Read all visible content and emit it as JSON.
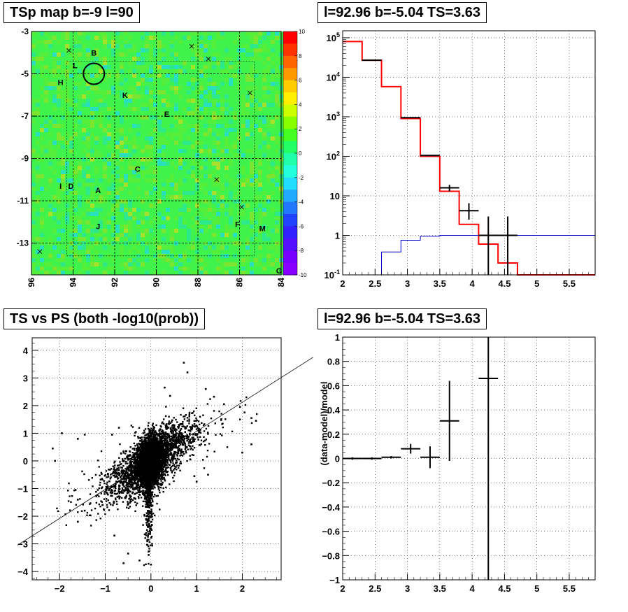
{
  "chart_data": [
    {
      "type": "heatmap",
      "title": "TSp map b=-9 l=90",
      "xlim": [
        96,
        84
      ],
      "ylim": [
        -14.5,
        -3
      ],
      "xticks": [
        96,
        94,
        92,
        90,
        88,
        86,
        84
      ],
      "yticks": [
        -3,
        -5,
        -7,
        -9,
        -11,
        -13
      ],
      "colorbar": {
        "min": -10,
        "max": 10,
        "ticks": [
          10,
          8,
          6,
          4,
          2,
          0,
          -2,
          -4,
          -6,
          -8,
          -10
        ]
      },
      "markers_x": [
        [
          94.2,
          -3.9
        ],
        [
          88.3,
          -3.7
        ],
        [
          87.5,
          -4.3
        ],
        [
          85.5,
          -5.9
        ],
        [
          87.1,
          -10.0
        ],
        [
          85.9,
          -11.3
        ],
        [
          95.6,
          -13.4
        ]
      ],
      "labels": [
        {
          "text": "B",
          "x": 93.0,
          "y": -4.0
        },
        {
          "text": "L",
          "x": 93.9,
          "y": -4.6
        },
        {
          "text": "H",
          "x": 94.6,
          "y": -5.4
        },
        {
          "text": "K",
          "x": 91.5,
          "y": -6.0
        },
        {
          "text": "E",
          "x": 89.5,
          "y": -6.9
        },
        {
          "text": "C",
          "x": 90.9,
          "y": -9.5
        },
        {
          "text": "I",
          "x": 94.6,
          "y": -10.3
        },
        {
          "text": "D",
          "x": 94.1,
          "y": -10.3
        },
        {
          "text": "A",
          "x": 92.8,
          "y": -10.5
        },
        {
          "text": "J",
          "x": 92.8,
          "y": -12.2
        },
        {
          "text": "F",
          "x": 86.1,
          "y": -12.1
        },
        {
          "text": "M",
          "x": 84.9,
          "y": -12.3
        },
        {
          "text": "G",
          "x": 84.1,
          "y": -14.3
        }
      ],
      "circle": {
        "x": 93.0,
        "y": -5.0
      }
    },
    {
      "type": "line",
      "title": "l=92.96 b=-5.04 TS=3.63",
      "xlim": [
        2,
        5.9
      ],
      "ylim": [
        0.1,
        150000
      ],
      "yscale": "log",
      "xticks": [
        2,
        2.5,
        3,
        3.5,
        4,
        4.5,
        5,
        5.5
      ],
      "yticks": [
        {
          "value": 0.1,
          "label": "10^-1"
        },
        {
          "value": 1,
          "label": "1"
        },
        {
          "value": 10,
          "label": "10"
        },
        {
          "value": 100,
          "label": "10^2"
        },
        {
          "value": 1000,
          "label": "10^3"
        },
        {
          "value": 10000,
          "label": "10^4"
        },
        {
          "value": 100000,
          "label": "10^5"
        }
      ],
      "bin_edges": [
        2,
        2.3,
        2.6,
        2.9,
        3.2,
        3.5,
        3.8,
        4.1,
        4.4,
        4.7,
        5.0,
        5.3,
        5.6,
        5.9
      ],
      "series": [
        {
          "color": "#ff0000",
          "values": [
            80000,
            27000,
            5800,
            900,
            100,
            13,
            1.9,
            0.6,
            0.2,
            0.1,
            0.1,
            0.1,
            0.1
          ]
        },
        {
          "color": "#0000cc",
          "values": [
            0.05,
            0.05,
            0.38,
            0.75,
            0.95,
            1.0,
            1.0,
            1.0,
            1.0,
            1.0,
            1.0,
            1.0,
            1.0
          ]
        }
      ],
      "data_points": [
        {
          "x": 2.45,
          "y": 27000
        },
        {
          "x": 3.05,
          "y": 950
        },
        {
          "x": 3.35,
          "y": 105
        },
        {
          "x": 3.65,
          "y": 16,
          "ylo": 13,
          "yhi": 19
        },
        {
          "x": 3.95,
          "y": 4.2,
          "ylo": 2.5,
          "yhi": 6.5
        },
        {
          "x": 4.25,
          "y": 1.0,
          "ylo": 0.1,
          "yhi": 3.0
        },
        {
          "x": 4.55,
          "y": 1.0,
          "ylo": 0.1,
          "yhi": 3.0
        }
      ]
    },
    {
      "type": "scatter",
      "title": "TS vs PS (both -log10(prob))",
      "xlim": [
        -2.6,
        2.85
      ],
      "ylim": [
        -4.3,
        4.45
      ],
      "xticks": [
        -2,
        -1,
        0,
        1,
        2
      ],
      "yticks": [
        4,
        3,
        2,
        1,
        0,
        -1,
        -2,
        -3,
        -4
      ],
      "fit_line": {
        "slope": 1.05,
        "intercept": 0.02
      },
      "outliers": [
        [
          0.72,
          3.55
        ],
        [
          0.8,
          3.2
        ],
        [
          1.2,
          2.6
        ],
        [
          1.38,
          2.32
        ],
        [
          1.6,
          2.05
        ],
        [
          1.95,
          1.95
        ],
        [
          2.05,
          1.75
        ],
        [
          2.3,
          1.45
        ],
        [
          2.2,
          1.55
        ],
        [
          -1.95,
          1.0
        ],
        [
          -2.1,
          0.0
        ],
        [
          -2.15,
          0.45
        ],
        [
          -1.45,
          0.95
        ],
        [
          -1.6,
          0.8
        ],
        [
          -1.65,
          -1.05
        ],
        [
          -1.6,
          -1.4
        ],
        [
          -1.6,
          -2.2
        ],
        [
          -1.45,
          -1.8
        ],
        [
          -0.25,
          -3.6
        ],
        [
          -0.05,
          -3.4
        ],
        [
          0.0,
          -3.75
        ],
        [
          -0.6,
          -3.7
        ],
        [
          -0.5,
          -3.35
        ],
        [
          -0.8,
          -2.7
        ],
        [
          0.3,
          2.65
        ],
        [
          0.42,
          2.35
        ],
        [
          1.0,
          -0.75
        ],
        [
          1.25,
          -0.5
        ],
        [
          0.95,
          -0.55
        ],
        [
          -0.7,
          1.2
        ],
        [
          -0.85,
          0.95
        ],
        [
          2.0,
          0.3
        ],
        [
          2.2,
          0.6
        ]
      ]
    },
    {
      "type": "scatter",
      "title": "l=92.96 b=-5.04 TS=3.63",
      "ylabel": "(data-model)/model",
      "xlim": [
        2,
        5.9
      ],
      "ylim": [
        -1,
        1
      ],
      "xticks": [
        2,
        2.5,
        3,
        3.5,
        4,
        4.5,
        5,
        5.5
      ],
      "yticks": [
        1,
        0.8,
        0.6,
        0.4,
        0.2,
        0,
        -0.2,
        -0.4,
        -0.6,
        -0.8,
        -1
      ],
      "data_points": [
        {
          "x": 2.15,
          "y": 0.0,
          "xerr": 0.15,
          "yerr": 0.01
        },
        {
          "x": 2.45,
          "y": 0.0,
          "xerr": 0.15,
          "yerr": 0.01
        },
        {
          "x": 2.75,
          "y": 0.01,
          "xerr": 0.15,
          "yerr": 0.01
        },
        {
          "x": 3.05,
          "y": 0.08,
          "xerr": 0.15,
          "yerr": 0.04
        },
        {
          "x": 3.35,
          "y": 0.01,
          "xerr": 0.15,
          "yerr": 0.09
        },
        {
          "x": 3.65,
          "y": 0.31,
          "xerr": 0.15,
          "yerr": 0.33
        },
        {
          "x": 4.25,
          "y": 0.66,
          "xerr": 0.15,
          "yerr": 2.0
        }
      ]
    }
  ]
}
